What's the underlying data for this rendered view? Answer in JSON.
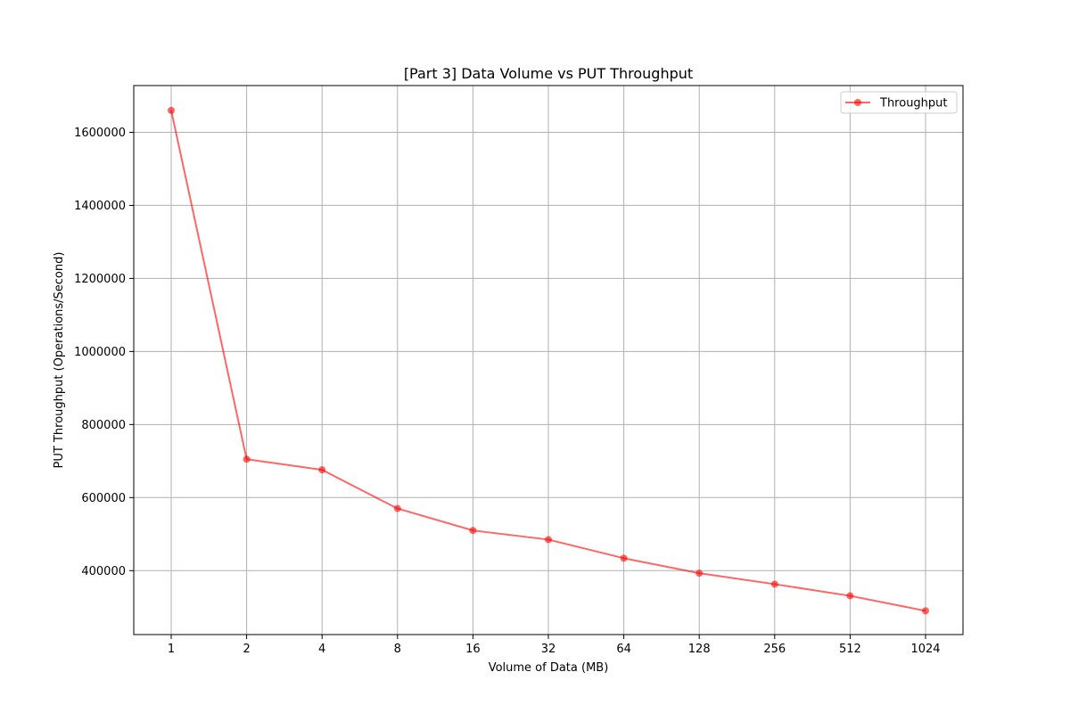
{
  "chart_data": {
    "type": "line",
    "title": "[Part 3] Data Volume vs PUT Throughput",
    "xlabel": "Volume of Data (MB)",
    "ylabel": "PUT Throughput (Operations/Second)",
    "categories": [
      "1",
      "2",
      "4",
      "8",
      "16",
      "32",
      "64",
      "128",
      "256",
      "512",
      "1024"
    ],
    "series": [
      {
        "name": "Throughput",
        "color": "#ff0000",
        "values": [
          1660000,
          705000,
          676000,
          570000,
          510000,
          485000,
          434000,
          393000,
          363000,
          331000,
          290000
        ]
      }
    ],
    "ylim": [
      225000,
      1728000
    ],
    "yticks": [
      400000,
      600000,
      800000,
      1000000,
      1200000,
      1400000,
      1600000
    ],
    "ytick_labels": [
      "400000",
      "600000",
      "800000",
      "1000000",
      "1200000",
      "1400000",
      "1600000"
    ],
    "grid": true,
    "legend_position": "upper right",
    "marker": "circle",
    "alpha": 0.6
  }
}
